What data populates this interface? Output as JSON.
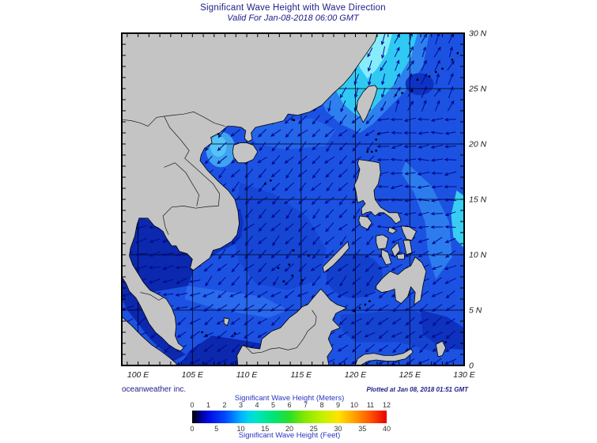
{
  "header": {
    "title": "Significant Wave Height with Wave Direction",
    "subtitle": "Valid For Jan-08-2018 06:00 GMT"
  },
  "footer": {
    "credit": "oceanweather inc.",
    "plotted_at": "Plotted at Jan 08, 2018 01:51 GMT"
  },
  "colorbar": {
    "meters_label": "Significant Wave Height (Meters)",
    "feet_label": "Significant Wave Height (Feet)",
    "meters_ticks": [
      "0",
      "1",
      "2",
      "3",
      "4",
      "5",
      "6",
      "7",
      "8",
      "9",
      "10",
      "11",
      "12"
    ],
    "feet_ticks": [
      "0",
      "5",
      "10",
      "15",
      "20",
      "25",
      "30",
      "35",
      "40"
    ],
    "gradient_stops": [
      [
        "0%",
        "#000000"
      ],
      [
        "4%",
        "#000080"
      ],
      [
        "8%",
        "#0008e0"
      ],
      [
        "17%",
        "#0048ff"
      ],
      [
        "25%",
        "#00b0ff"
      ],
      [
        "29%",
        "#00d4ec"
      ],
      [
        "33%",
        "#00e4c4"
      ],
      [
        "42%",
        "#00e474"
      ],
      [
        "50%",
        "#2ade2a"
      ],
      [
        "58%",
        "#86e800"
      ],
      [
        "67%",
        "#c4f000"
      ],
      [
        "75%",
        "#ffe400"
      ],
      [
        "83%",
        "#ffa400"
      ],
      [
        "92%",
        "#ff5000"
      ],
      [
        "100%",
        "#e80000"
      ]
    ]
  },
  "map": {
    "x_tick_labels": [
      "100 E",
      "105 E",
      "110 E",
      "115 E",
      "120 E",
      "125 E",
      "130 E"
    ],
    "y_tick_labels": [
      "30 N",
      "25 N",
      "20 N",
      "15 N",
      "10 N",
      "5 N",
      "0"
    ],
    "lon_min": 98.5,
    "lon_max": 130,
    "lat_min": 0,
    "lat_max": 30,
    "wave_regions": [
      {
        "name": "east-china-sea",
        "lon": [
          98.5,
          123.2
        ],
        "lat": [
          23,
          30
        ],
        "bearing": 200
      },
      {
        "name": "philippine-sea-north",
        "lon": [
          123.2,
          130
        ],
        "lat": [
          23,
          30
        ],
        "bearing": 25
      },
      {
        "name": "philippine-sea-east",
        "lon": [
          121.5,
          130
        ],
        "lat": [
          12,
          23
        ],
        "bearing": 265
      },
      {
        "name": "philippine-sea-southeast",
        "lon": [
          121.5,
          130
        ],
        "lat": [
          7,
          12
        ],
        "bearing": 245
      },
      {
        "name": "gulf-of-thailand",
        "lon": [
          98.5,
          106
        ],
        "lat": [
          5,
          14
        ],
        "bearing": 255
      },
      {
        "name": "south-china-sea",
        "lon": [
          106,
          121.5
        ],
        "lat": [
          7,
          23
        ],
        "bearing": 225
      },
      {
        "name": "southern-seas",
        "lon": [
          98.5,
          130
        ],
        "lat": [
          0,
          7
        ],
        "bearing": 235
      }
    ]
  },
  "palette": {
    "title_text": "#20208c",
    "axis_text": "#1a1a1a",
    "colorbar_label_text": "#2a35c0",
    "tick_number_text": "#333333",
    "land": "#c4c4c4",
    "coast": "#000000",
    "sea_base": "#1c52e2",
    "sea_light": "#2d80ee",
    "sea_cyan": "#30c9f4",
    "sea_cyan_bright": "#86ecfb",
    "sea_dark": "#0d32c2",
    "sea_deep": "#0b28ae",
    "arrow": "#000a8e",
    "grid": "#000000"
  }
}
